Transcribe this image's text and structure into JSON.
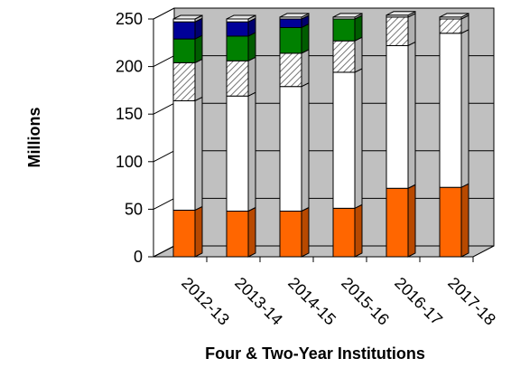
{
  "chart_data": {
    "type": "bar",
    "stacked": true,
    "three_d": true,
    "title": "",
    "xlabel": "Four & Two-Year Institutions",
    "ylabel": "Millions",
    "ylim": [
      0,
      250
    ],
    "yticks": [
      0,
      50,
      100,
      150,
      200,
      250
    ],
    "grid": true,
    "legend": "none",
    "categories": [
      "2012-13",
      "2013-14",
      "2014-15",
      "2015-16",
      "2016-17",
      "2017-18"
    ],
    "series": [
      {
        "color": "#ff6600",
        "pattern": "solid",
        "values": [
          49,
          48,
          48,
          51,
          72,
          73
        ]
      },
      {
        "color": "#ffffff",
        "pattern": "solid",
        "values": [
          115,
          121,
          131,
          143,
          150,
          162
        ]
      },
      {
        "color": "#d0d0d0",
        "pattern": "hatched",
        "values": [
          40,
          37,
          35,
          33,
          30,
          15
        ]
      },
      {
        "color": "#008000",
        "pattern": "solid",
        "values": [
          25,
          26,
          27,
          23,
          0,
          0
        ]
      },
      {
        "color": "#000099",
        "pattern": "solid",
        "values": [
          18,
          15,
          9,
          0,
          0,
          0
        ]
      },
      {
        "color": "#ffffff",
        "pattern": "solid",
        "values": [
          3,
          3,
          2,
          2,
          2,
          2
        ]
      }
    ]
  },
  "style": {
    "wall_color": "#c0c0c0",
    "floor_color": "#c0c0c0",
    "outline_color": "#000000"
  }
}
